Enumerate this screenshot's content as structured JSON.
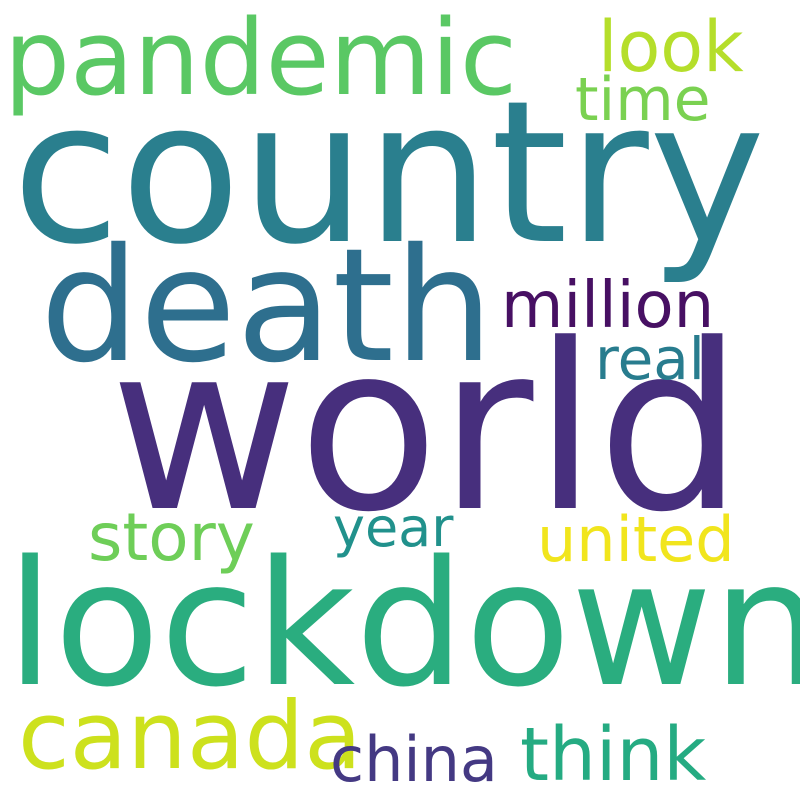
{
  "words": [
    {
      "text": "country",
      "color": "#2a7f8e"
    },
    {
      "text": "world",
      "color": "#472f7d"
    },
    {
      "text": "lockdown",
      "color": "#2aad7f"
    },
    {
      "text": "death",
      "color": "#2e6f8e"
    },
    {
      "text": "pandemic",
      "color": "#5ac864"
    },
    {
      "text": "canada",
      "color": "#cde11d"
    },
    {
      "text": "look",
      "color": "#b5de2b"
    },
    {
      "text": "time",
      "color": "#7ad151"
    },
    {
      "text": "million",
      "color": "#471063"
    },
    {
      "text": "real",
      "color": "#287c8e"
    },
    {
      "text": "story",
      "color": "#6ece58"
    },
    {
      "text": "year",
      "color": "#21918c"
    },
    {
      "text": "united",
      "color": "#f1e51d"
    },
    {
      "text": "china",
      "color": "#443983"
    },
    {
      "text": "think",
      "color": "#25ab82"
    }
  ]
}
